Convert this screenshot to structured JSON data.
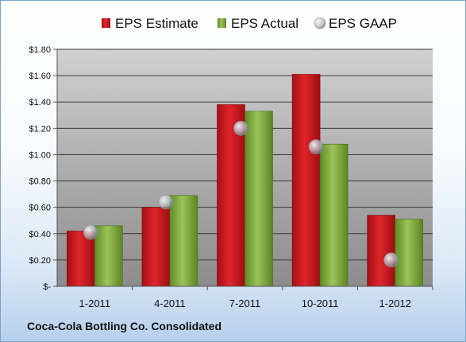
{
  "footer": {
    "company": "Coca-Cola Bottling Co. Consolidated"
  },
  "colors": {
    "estimate": "#c8161d",
    "actual": "#7aa33a",
    "gaap": "#b9bec4",
    "plot_top": "#d0d0d0",
    "plot_bottom": "#8c8c8c"
  },
  "chart_data": {
    "type": "bar",
    "categories": [
      "1-2011",
      "4-2011",
      "7-2011",
      "10-2011",
      "1-2012"
    ],
    "series": [
      {
        "name": "EPS Estimate",
        "kind": "bar",
        "values": [
          0.42,
          0.6,
          1.38,
          1.61,
          0.54
        ]
      },
      {
        "name": "EPS Actual",
        "kind": "bar",
        "values": [
          0.46,
          0.69,
          1.33,
          1.08,
          0.51
        ]
      },
      {
        "name": "EPS GAAP",
        "kind": "marker",
        "values": [
          0.41,
          0.64,
          1.2,
          1.06,
          0.2
        ]
      }
    ],
    "ylim": [
      0,
      1.8
    ],
    "yticks": [
      "$-",
      "$0.20",
      "$0.40",
      "$0.60",
      "$0.80",
      "$1.00",
      "$1.20",
      "$1.40",
      "$1.60",
      "$1.80"
    ],
    "grid": true,
    "legend": "top"
  }
}
